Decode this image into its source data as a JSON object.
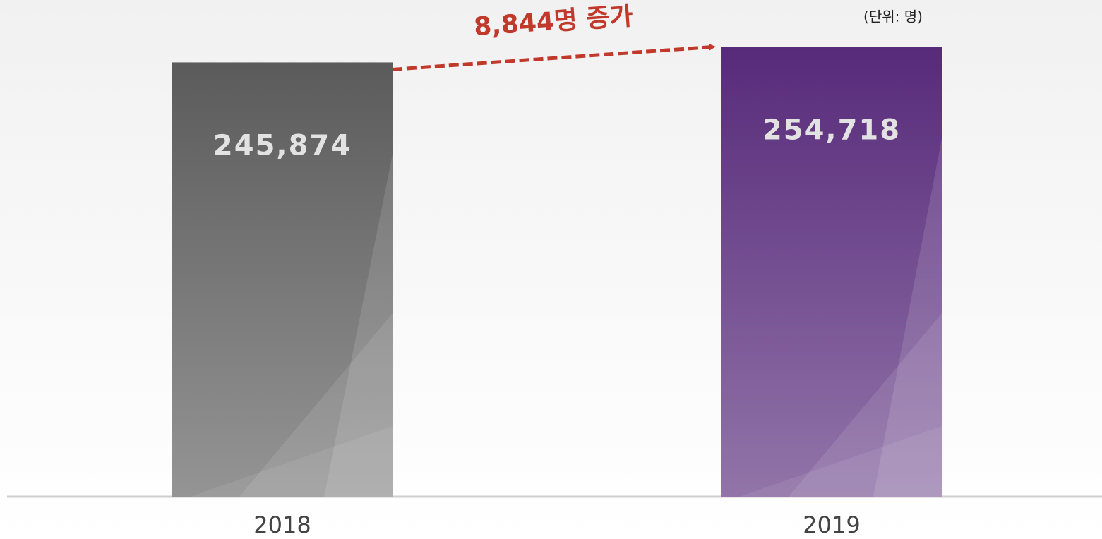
{
  "chart_data": {
    "type": "bar",
    "categories": [
      "2018",
      "2019"
    ],
    "values": [
      245874,
      254718
    ],
    "value_labels": [
      "245,874",
      "254,718"
    ],
    "colors": [
      "#5b5b5b",
      "#572a7a"
    ],
    "ylim": [
      0,
      280000
    ],
    "annotations": [
      "8,844명 증가",
      "(단위: 명)"
    ]
  }
}
